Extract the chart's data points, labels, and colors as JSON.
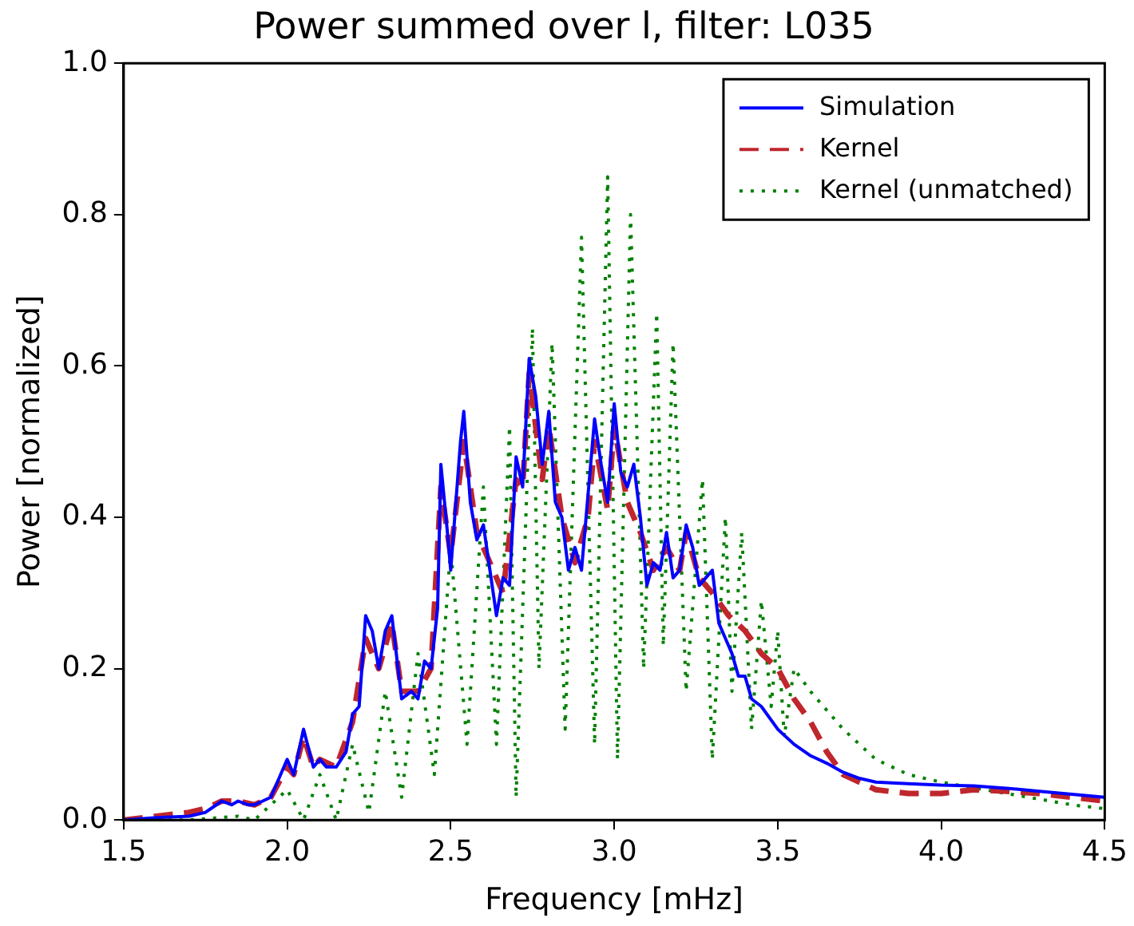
{
  "chart_data": {
    "type": "line",
    "title": "Power summed over l, filter: L035",
    "xlabel": "Frequency [mHz]",
    "ylabel": "Power [normalized]",
    "xlim": [
      1.5,
      4.5
    ],
    "xticks": [
      1.5,
      {
        "value": 2,
        "label": "2.0"
      },
      2.5,
      {
        "value": 3,
        "label": "3.0"
      },
      3.5,
      {
        "value": 4,
        "label": "4.0"
      },
      4.5
    ],
    "ylim": [
      0,
      1
    ],
    "yticks": [
      {
        "value": 0,
        "label": "0.0"
      },
      0.2,
      0.4,
      0.6,
      0.8,
      {
        "value": 1,
        "label": "1.0"
      }
    ],
    "grid": false,
    "legend": "top right",
    "marker": "none",
    "series": [
      {
        "name": "Simulation",
        "color": "#0000ff",
        "line_style": "solid",
        "x": [
          1.5,
          1.6,
          1.7,
          1.75,
          1.8,
          1.83,
          1.85,
          1.88,
          1.9,
          1.95,
          1.98,
          2.0,
          2.02,
          2.05,
          2.08,
          2.1,
          2.12,
          2.15,
          2.18,
          2.2,
          2.22,
          2.24,
          2.26,
          2.28,
          2.3,
          2.32,
          2.35,
          2.38,
          2.4,
          2.42,
          2.44,
          2.46,
          2.47,
          2.49,
          2.5,
          2.53,
          2.54,
          2.56,
          2.58,
          2.6,
          2.62,
          2.64,
          2.66,
          2.68,
          2.7,
          2.72,
          2.74,
          2.76,
          2.78,
          2.8,
          2.82,
          2.84,
          2.86,
          2.88,
          2.9,
          2.92,
          2.94,
          2.96,
          2.98,
          3.0,
          3.02,
          3.04,
          3.06,
          3.08,
          3.1,
          3.12,
          3.14,
          3.16,
          3.18,
          3.2,
          3.22,
          3.24,
          3.26,
          3.28,
          3.3,
          3.32,
          3.34,
          3.36,
          3.38,
          3.4,
          3.42,
          3.45,
          3.5,
          3.55,
          3.6,
          3.65,
          3.7,
          3.75,
          3.8,
          3.9,
          4.0,
          4.1,
          4.2,
          4.3,
          4.4,
          4.5
        ],
        "values": [
          0.0,
          0.003,
          0.005,
          0.01,
          0.025,
          0.02,
          0.025,
          0.02,
          0.02,
          0.03,
          0.06,
          0.08,
          0.06,
          0.12,
          0.07,
          0.08,
          0.07,
          0.07,
          0.09,
          0.14,
          0.15,
          0.27,
          0.25,
          0.2,
          0.25,
          0.27,
          0.16,
          0.17,
          0.16,
          0.21,
          0.2,
          0.28,
          0.47,
          0.38,
          0.33,
          0.5,
          0.54,
          0.42,
          0.37,
          0.39,
          0.33,
          0.27,
          0.32,
          0.31,
          0.48,
          0.44,
          0.61,
          0.56,
          0.47,
          0.54,
          0.42,
          0.4,
          0.33,
          0.36,
          0.33,
          0.43,
          0.53,
          0.47,
          0.42,
          0.55,
          0.46,
          0.44,
          0.47,
          0.4,
          0.31,
          0.34,
          0.33,
          0.38,
          0.32,
          0.33,
          0.39,
          0.36,
          0.31,
          0.32,
          0.33,
          0.26,
          0.24,
          0.22,
          0.19,
          0.19,
          0.16,
          0.15,
          0.12,
          0.1,
          0.085,
          0.075,
          0.063,
          0.055,
          0.05,
          0.048,
          0.046,
          0.045,
          0.042,
          0.038,
          0.034,
          0.03
        ]
      },
      {
        "name": "Kernel",
        "color": "#c0262d",
        "line_style": "dashed",
        "x": [
          1.5,
          1.6,
          1.7,
          1.75,
          1.8,
          1.85,
          1.9,
          1.95,
          2.0,
          2.02,
          2.05,
          2.08,
          2.1,
          2.15,
          2.2,
          2.24,
          2.26,
          2.28,
          2.3,
          2.32,
          2.35,
          2.4,
          2.44,
          2.47,
          2.5,
          2.54,
          2.58,
          2.62,
          2.66,
          2.7,
          2.72,
          2.74,
          2.78,
          2.8,
          2.84,
          2.88,
          2.92,
          2.94,
          2.98,
          3.0,
          3.04,
          3.08,
          3.12,
          3.16,
          3.2,
          3.22,
          3.26,
          3.3,
          3.35,
          3.4,
          3.45,
          3.5,
          3.55,
          3.6,
          3.65,
          3.7,
          3.8,
          3.9,
          4.0,
          4.1,
          4.2,
          4.3,
          4.4,
          4.5
        ],
        "values": [
          0.0,
          0.005,
          0.01,
          0.015,
          0.025,
          0.025,
          0.02,
          0.03,
          0.07,
          0.06,
          0.11,
          0.07,
          0.08,
          0.07,
          0.13,
          0.24,
          0.22,
          0.2,
          0.23,
          0.26,
          0.17,
          0.17,
          0.2,
          0.44,
          0.35,
          0.5,
          0.38,
          0.34,
          0.3,
          0.45,
          0.44,
          0.59,
          0.45,
          0.52,
          0.4,
          0.34,
          0.4,
          0.5,
          0.41,
          0.52,
          0.42,
          0.38,
          0.33,
          0.36,
          0.33,
          0.38,
          0.32,
          0.3,
          0.27,
          0.25,
          0.22,
          0.2,
          0.16,
          0.13,
          0.09,
          0.06,
          0.04,
          0.035,
          0.035,
          0.04,
          0.038,
          0.035,
          0.03,
          0.025
        ]
      },
      {
        "name": "Kernel (unmatched)",
        "color": "#008000",
        "line_style": "dotted",
        "x": [
          1.5,
          1.7,
          1.85,
          1.9,
          2.0,
          2.05,
          2.1,
          2.15,
          2.2,
          2.25,
          2.3,
          2.35,
          2.4,
          2.45,
          2.5,
          2.55,
          2.6,
          2.64,
          2.68,
          2.7,
          2.75,
          2.77,
          2.81,
          2.85,
          2.9,
          2.94,
          2.98,
          3.01,
          3.05,
          3.09,
          3.13,
          3.15,
          3.18,
          3.22,
          3.27,
          3.3,
          3.34,
          3.36,
          3.39,
          3.42,
          3.45,
          3.48,
          3.5,
          3.52,
          3.55,
          3.6,
          3.7,
          3.8,
          3.9,
          4.0,
          4.2,
          4.4,
          4.5
        ],
        "values": [
          0.0,
          0.0,
          0.005,
          0.0,
          0.04,
          0.0,
          0.06,
          0.0,
          0.1,
          0.01,
          0.17,
          0.03,
          0.22,
          0.06,
          0.36,
          0.1,
          0.44,
          0.1,
          0.52,
          0.03,
          0.65,
          0.2,
          0.63,
          0.12,
          0.77,
          0.1,
          0.85,
          0.08,
          0.8,
          0.2,
          0.67,
          0.23,
          0.63,
          0.17,
          0.45,
          0.08,
          0.4,
          0.17,
          0.38,
          0.12,
          0.29,
          0.15,
          0.25,
          0.11,
          0.2,
          0.17,
          0.12,
          0.08,
          0.06,
          0.05,
          0.035,
          0.02,
          0.015
        ]
      }
    ]
  }
}
